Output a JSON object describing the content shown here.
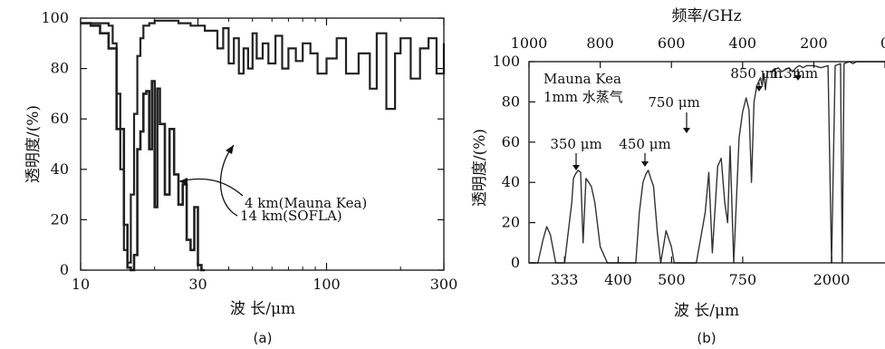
{
  "chart_data": [
    {
      "id": "a",
      "type": "line",
      "caption": "(a)",
      "xlabel": "波 长/μm",
      "ylabel": "透明度/(%)",
      "x_scale": "log",
      "xlim": [
        10,
        300
      ],
      "ylim": [
        0,
        100
      ],
      "xticks": [
        10,
        30,
        100,
        300
      ],
      "yticks": [
        0,
        20,
        40,
        60,
        80,
        100
      ],
      "grid": false,
      "series": [
        {
          "name": "14 km(SOFLA)",
          "style": "step",
          "x": [
            10,
            13,
            13.5,
            14,
            14.5,
            15,
            15.5,
            16,
            16.5,
            17,
            17.5,
            18,
            19,
            20,
            22,
            25,
            28,
            32,
            36,
            38,
            40,
            42,
            44,
            46,
            48,
            50,
            52,
            55,
            58,
            62,
            66,
            70,
            75,
            80,
            86,
            92,
            100,
            110,
            120,
            135,
            150,
            160,
            175,
            190,
            200,
            220,
            240,
            260,
            280,
            300
          ],
          "y": [
            98,
            97,
            90,
            70,
            40,
            8,
            3,
            30,
            62,
            85,
            92,
            97,
            98,
            99,
            99,
            98,
            97,
            95,
            88,
            96,
            82,
            92,
            78,
            88,
            80,
            94,
            84,
            90,
            82,
            93,
            80,
            88,
            83,
            90,
            86,
            78,
            84,
            92,
            78,
            86,
            72,
            94,
            64,
            86,
            92,
            76,
            88,
            92,
            78,
            90
          ]
        },
        {
          "name": "4 km(Mauna Kea)",
          "style": "step",
          "x": [
            10,
            11,
            12,
            13,
            14,
            15,
            15.5,
            16,
            16.5,
            17,
            17.5,
            18,
            18.5,
            19,
            19.5,
            20,
            20.5,
            21,
            22,
            23,
            24,
            25,
            26,
            27,
            28,
            29,
            30,
            31,
            32
          ],
          "y": [
            98,
            97,
            94,
            88,
            56,
            18,
            1,
            0,
            6,
            48,
            55,
            70,
            71,
            48,
            75,
            25,
            72,
            58,
            30,
            56,
            38,
            26,
            34,
            12,
            8,
            25,
            2,
            0,
            0
          ]
        }
      ],
      "annotations": [
        "14 km(SOFLA)",
        "4 km(Mauna Kea)"
      ]
    },
    {
      "id": "b",
      "type": "line",
      "caption": "(b)",
      "xlabel": "波 长/μm",
      "ylabel": "透明度/(%)",
      "top_xlabel": "频率/GHz",
      "top_xticks": [
        1000,
        800,
        600,
        400,
        200,
        0
      ],
      "xlim_frequency_GHz": [
        1000,
        0
      ],
      "ylim": [
        0,
        100
      ],
      "yticks": [
        0,
        20,
        40,
        60,
        80,
        100
      ],
      "xtick_labels": [
        "333",
        "400",
        "500",
        "750",
        "2000"
      ],
      "grid": false,
      "legend_text": [
        "Mauna Kea",
        "1mm 水蒸气"
      ],
      "annotations": [
        "350 μm",
        "450 μm",
        "750 μm",
        "850 μm",
        "1.3mm"
      ],
      "series": [
        {
          "name": "",
          "frequency_GHz": [
            1000,
            975,
            960,
            950,
            940,
            925,
            900,
            880,
            875,
            870,
            862,
            855,
            848,
            840,
            832,
            825,
            815,
            800,
            780,
            760,
            740,
            720,
            700,
            690,
            680,
            672,
            665,
            658,
            650,
            640,
            630,
            615,
            600,
            592,
            585,
            570,
            550,
            530,
            505,
            495,
            485,
            470,
            460,
            450,
            442,
            435,
            425,
            410,
            400,
            390,
            382,
            375,
            368,
            360,
            350,
            345,
            340,
            336,
            330,
            320,
            310,
            300,
            290,
            280,
            270,
            260,
            250,
            240,
            230,
            220,
            200,
            180,
            160,
            150,
            140,
            125,
            120,
            115,
            100,
            90,
            80,
            60,
            40,
            20,
            0
          ],
          "transmission_pct": [
            0,
            0,
            12,
            18,
            14,
            0,
            0,
            30,
            42,
            44,
            46,
            45,
            10,
            42,
            40,
            38,
            30,
            8,
            0,
            0,
            0,
            0,
            0,
            25,
            40,
            44,
            46,
            42,
            38,
            16,
            0,
            16,
            8,
            0,
            0,
            0,
            0,
            0,
            25,
            45,
            5,
            48,
            52,
            30,
            20,
            58,
            0,
            62,
            75,
            82,
            76,
            40,
            80,
            88,
            92,
            88,
            94,
            86,
            95,
            95,
            96,
            97,
            95,
            96,
            97,
            95,
            97,
            98,
            97,
            98,
            98,
            97,
            98,
            0,
            98,
            99,
            0,
            99,
            100,
            99,
            100,
            100,
            100,
            100,
            100
          ]
        }
      ]
    }
  ]
}
